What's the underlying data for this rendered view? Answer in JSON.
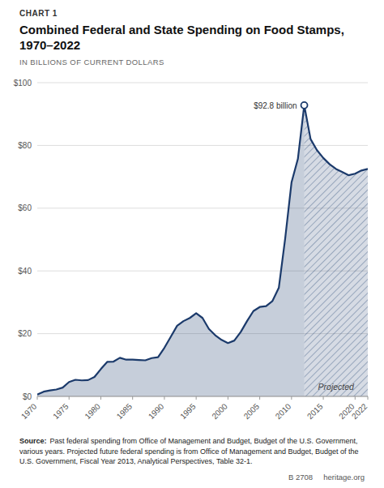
{
  "chart_data": {
    "type": "area",
    "chart_label": "CHART 1",
    "title": "Combined Federal and State Spending on Food Stamps, 1970–2022",
    "subtitle": "IN BILLIONS OF CURRENT DOLLARS",
    "x": [
      1970,
      1971,
      1972,
      1973,
      1974,
      1975,
      1976,
      1977,
      1978,
      1979,
      1980,
      1981,
      1982,
      1983,
      1984,
      1985,
      1986,
      1987,
      1988,
      1989,
      1990,
      1991,
      1992,
      1993,
      1994,
      1995,
      1996,
      1997,
      1998,
      1999,
      2000,
      2001,
      2002,
      2003,
      2004,
      2005,
      2006,
      2007,
      2008,
      2009,
      2010,
      2011,
      2012,
      2013,
      2014,
      2015,
      2016,
      2017,
      2018,
      2019,
      2020,
      2021,
      2022
    ],
    "values": [
      0.6,
      1.5,
      1.9,
      2.2,
      2.8,
      4.6,
      5.3,
      5.1,
      5.2,
      6.2,
      8.7,
      11.0,
      11.1,
      12.3,
      11.7,
      11.7,
      11.6,
      11.5,
      12.2,
      12.5,
      15.5,
      19.0,
      22.5,
      24.0,
      25.0,
      26.5,
      25.0,
      21.5,
      19.5,
      18.0,
      17.0,
      17.8,
      20.5,
      24.0,
      27.2,
      28.5,
      28.8,
      30.4,
      34.6,
      50.3,
      68.2,
      75.7,
      92.8,
      82.0,
      78.5,
      76.0,
      74.0,
      72.5,
      71.5,
      70.5,
      71.0,
      72.0,
      72.5
    ],
    "color": "#1b3a6b",
    "projected_start": 2012,
    "projected_label": "Projected",
    "annotations": [
      {
        "text": "$92.8 billion",
        "x": 2012,
        "y": 92.8
      }
    ],
    "xlim": [
      1970,
      2022
    ],
    "ylim": [
      0,
      100
    ],
    "xticks": [
      1970,
      1975,
      1980,
      1985,
      1990,
      1995,
      2000,
      2005,
      2010,
      2015,
      2020,
      2022
    ],
    "yticks": [
      {
        "value": 0,
        "label": "$0"
      },
      {
        "value": 20,
        "label": "$20"
      },
      {
        "value": 40,
        "label": "$40"
      },
      {
        "value": 60,
        "label": "$60"
      },
      {
        "value": 80,
        "label": "$80"
      },
      {
        "value": 100,
        "label": "$100"
      }
    ],
    "grid": true,
    "source_label": "Source:",
    "source": "Past federal spending from Office of Management and Budget, Budget of the U.S. Government, various years. Projected future federal spending is from Office of Management and Budget, Budget of the U.S. Government, Fiscal Year 2013, Analytical Perspectives, Table 32-1.",
    "footer": "B 2708     heritage.org"
  }
}
